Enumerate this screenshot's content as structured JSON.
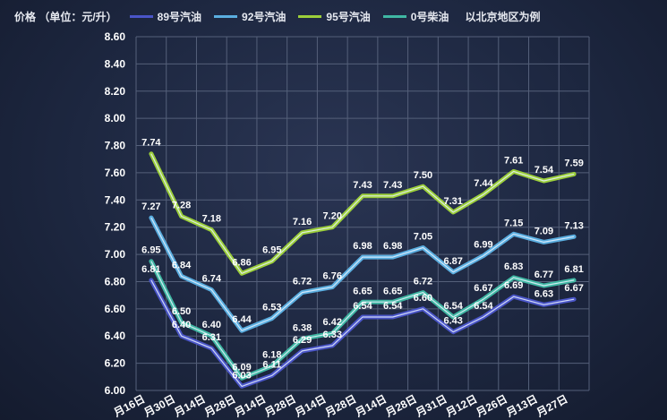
{
  "header": {
    "unit_label": "价格 （单位：元/升）",
    "note": "以北京地区为例"
  },
  "colors": {
    "background": "#1d2740",
    "grid": "#55607a",
    "label": "#ffffff",
    "series": [
      "#4a55c8",
      "#5aaee0",
      "#9ccf3a",
      "#3fb7a3"
    ]
  },
  "chart_data": {
    "type": "line",
    "title": "",
    "xlabel": "",
    "ylabel": "价格 （单位：元/升）",
    "ylim": [
      6.0,
      8.6
    ],
    "yticks": [
      "6.00",
      "6.20",
      "6.40",
      "6.60",
      "6.80",
      "7.00",
      "7.20",
      "7.40",
      "7.60",
      "7.80",
      "8.00",
      "8.20",
      "8.40",
      "8.60"
    ],
    "grid": true,
    "legend_position": "top",
    "categories": [
      "月16日",
      "月30日",
      "月14日",
      "月28日",
      "月14日",
      "月28日",
      "月14日",
      "月28日",
      "月14日",
      "月28日",
      "月31日",
      "月12日",
      "月26日",
      "月13日",
      "月27日"
    ],
    "series": [
      {
        "name": "89号汽油",
        "values": [
          6.81,
          6.4,
          6.31,
          6.03,
          6.11,
          6.29,
          6.33,
          6.54,
          6.54,
          6.6,
          6.43,
          6.54,
          6.69,
          6.63,
          6.67
        ]
      },
      {
        "name": "92号汽油",
        "values": [
          7.27,
          6.84,
          6.74,
          6.44,
          6.53,
          6.72,
          6.76,
          6.98,
          6.98,
          7.05,
          6.87,
          6.99,
          7.15,
          7.09,
          7.13
        ]
      },
      {
        "name": "95号汽油",
        "values": [
          7.74,
          7.28,
          7.18,
          6.86,
          6.95,
          7.16,
          7.2,
          7.43,
          7.43,
          7.5,
          7.31,
          7.44,
          7.61,
          7.54,
          7.59
        ]
      },
      {
        "name": "0号柴油",
        "values": [
          6.95,
          6.5,
          6.4,
          6.09,
          6.18,
          6.38,
          6.42,
          6.65,
          6.65,
          6.72,
          6.54,
          6.67,
          6.83,
          6.77,
          6.81
        ]
      }
    ]
  }
}
